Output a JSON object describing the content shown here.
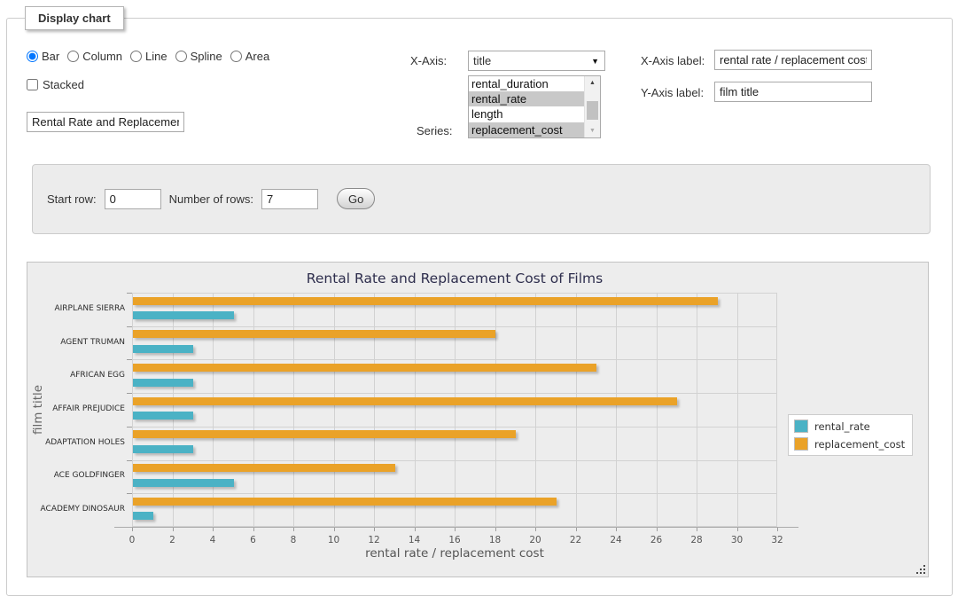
{
  "panel": {
    "legend": "Display chart"
  },
  "chart_type": {
    "options": [
      {
        "label": "Bar",
        "selected": true
      },
      {
        "label": "Column",
        "selected": false
      },
      {
        "label": "Line",
        "selected": false
      },
      {
        "label": "Spline",
        "selected": false
      },
      {
        "label": "Area",
        "selected": false
      }
    ]
  },
  "stacked": {
    "label": "Stacked",
    "checked": false
  },
  "chart_title_input": {
    "value": "Rental Rate and Replacement Cost of Films"
  },
  "x_axis": {
    "label": "X-Axis:",
    "value": "title"
  },
  "series_select": {
    "label": "Series:",
    "options": [
      {
        "label": "rental_duration",
        "selected": false
      },
      {
        "label": "rental_rate",
        "selected": true
      },
      {
        "label": "length",
        "selected": false
      },
      {
        "label": "replacement_cost",
        "selected": true
      }
    ]
  },
  "x_axis_label": {
    "label": "X-Axis label:",
    "value": "rental rate / replacement cost"
  },
  "y_axis_label": {
    "label": "Y-Axis label:",
    "value": "film title"
  },
  "rows_panel": {
    "start_row_label": "Start row:",
    "start_row_value": "0",
    "num_rows_label": "Number of rows:",
    "num_rows_value": "7",
    "go_label": "Go"
  },
  "chart_data": {
    "type": "bar",
    "orientation": "horizontal",
    "stacked": false,
    "title": "Rental Rate and Replacement Cost of Films",
    "xlabel": "rental rate / replacement cost",
    "ylabel": "film title",
    "categories": [
      "AIRPLANE SIERRA",
      "AGENT TRUMAN",
      "AFRICAN EGG",
      "AFFAIR PREJUDICE",
      "ADAPTATION HOLES",
      "ACE GOLDFINGER",
      "ACADEMY DINOSAUR"
    ],
    "series": [
      {
        "name": "rental_rate",
        "color": "#4bb2c5",
        "values": [
          4.99,
          2.99,
          2.99,
          2.99,
          2.99,
          4.99,
          0.99
        ]
      },
      {
        "name": "replacement_cost",
        "color": "#eaa228",
        "values": [
          28.99,
          17.99,
          22.99,
          26.99,
          18.99,
          12.99,
          20.99
        ]
      }
    ],
    "xlim": [
      0,
      32
    ],
    "xticks": [
      0,
      2,
      4,
      6,
      8,
      10,
      12,
      14,
      16,
      18,
      20,
      22,
      24,
      26,
      28,
      30,
      32
    ],
    "grid": true,
    "legend_position": "right",
    "plot_bg": "#ededed",
    "grid_color": "#d2d2d2"
  }
}
